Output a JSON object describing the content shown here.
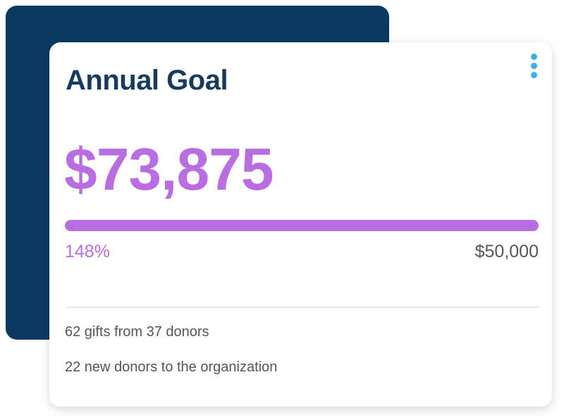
{
  "card": {
    "title": "Annual Goal",
    "amount": "$73,875",
    "percent": "148%",
    "goal": "$50,000",
    "stats": [
      "62 gifts from 37 donors",
      "22 new donors to the organization"
    ]
  }
}
